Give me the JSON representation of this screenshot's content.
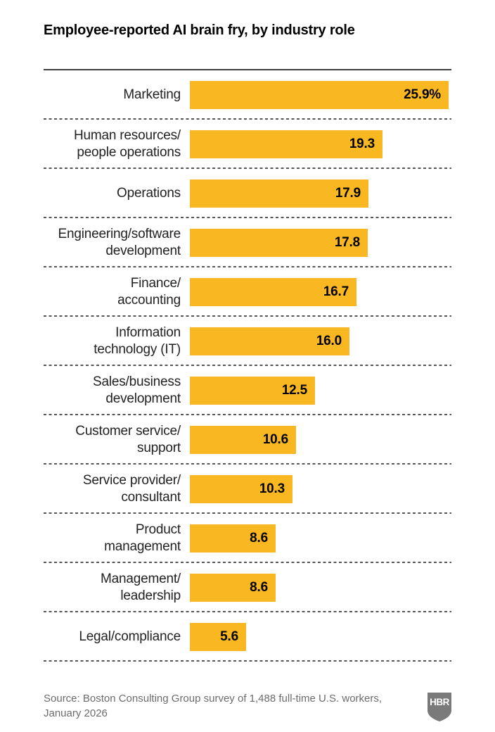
{
  "title": "Employee-reported AI brain fry, by industry role",
  "chart_data": {
    "type": "bar",
    "orientation": "horizontal",
    "title": "Employee-reported AI brain fry, by industry role",
    "categories": [
      "Marketing",
      "Human resources/\npeople operations",
      "Operations",
      "Engineering/software\ndevelopment",
      "Finance/\naccounting",
      "Information\ntechnology (IT)",
      "Sales/business\ndevelopment",
      "Customer service/\nsupport",
      "Service provider/\nconsultant",
      "Product\nmanagement",
      "Management/\nleadership",
      "Legal/compliance"
    ],
    "values": [
      25.9,
      19.3,
      17.9,
      17.8,
      16.7,
      16.0,
      12.5,
      10.6,
      10.3,
      8.6,
      8.6,
      5.6
    ],
    "value_labels": [
      "25.9%",
      "19.3",
      "17.9",
      "17.8",
      "16.7",
      "16.0",
      "12.5",
      "10.6",
      "10.3",
      "8.6",
      "8.6",
      "5.6"
    ],
    "unit": "percent",
    "xlim": [
      0,
      25.9
    ],
    "xlabel": "",
    "ylabel": "",
    "legend": "none",
    "gridlines": "dashed row separators",
    "value_label_position": "inside-right",
    "bar_color": "#F9B722"
  },
  "colors": {
    "bar": "#F9B722",
    "title_text": "#000000",
    "category_text": "#222222",
    "value_text": "#000000",
    "top_rule": "#3d3d3d",
    "separator": "#555555",
    "source_text": "#6b6b6b",
    "logo_fill": "#7a7a7a",
    "logo_text": "#ffffff",
    "background": "#ffffff"
  },
  "footer": {
    "source": "Source: Boston Consulting Group survey of 1,488 full-time U.S. workers,\nJanuary 2026",
    "logo": {
      "text": "HBR",
      "fill": "#7a7a7a"
    }
  }
}
